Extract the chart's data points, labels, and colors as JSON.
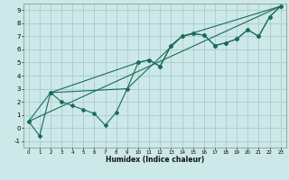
{
  "xlabel": "Humidex (Indice chaleur)",
  "bg_color": "#cce8e8",
  "grid_color": "#aacccc",
  "line_color": "#1a6b5a",
  "xlim": [
    -0.5,
    23.5
  ],
  "ylim": [
    -1.5,
    9.5
  ],
  "xticks": [
    0,
    1,
    2,
    3,
    4,
    5,
    6,
    7,
    8,
    9,
    10,
    11,
    12,
    13,
    14,
    15,
    16,
    17,
    18,
    19,
    20,
    21,
    22,
    23
  ],
  "yticks": [
    -1,
    0,
    1,
    2,
    3,
    4,
    5,
    6,
    7,
    8,
    9
  ],
  "line1_x": [
    0,
    1,
    2,
    3,
    4,
    5,
    6,
    7,
    8,
    9,
    10,
    11,
    12,
    13,
    14,
    15,
    16,
    17,
    18,
    19,
    20,
    21,
    22,
    23
  ],
  "line1_y": [
    0.5,
    -0.6,
    2.7,
    2.0,
    1.7,
    1.4,
    1.1,
    0.2,
    1.2,
    3.0,
    5.0,
    5.2,
    4.7,
    6.3,
    7.0,
    7.2,
    7.1,
    6.3,
    6.5,
    6.8,
    7.5,
    7.0,
    8.5,
    9.3
  ],
  "line2_x": [
    0,
    2,
    10,
    11,
    12,
    13,
    14,
    15,
    16,
    17,
    18,
    19,
    20,
    21,
    22,
    23
  ],
  "line2_y": [
    0.5,
    2.7,
    5.0,
    5.2,
    4.7,
    6.3,
    7.0,
    7.2,
    7.1,
    6.3,
    6.5,
    6.8,
    7.5,
    7.0,
    8.5,
    9.3
  ],
  "line3_x": [
    0,
    23
  ],
  "line3_y": [
    0.5,
    9.3
  ],
  "line4_x": [
    2,
    9,
    14,
    23
  ],
  "line4_y": [
    2.7,
    3.0,
    7.0,
    9.3
  ]
}
